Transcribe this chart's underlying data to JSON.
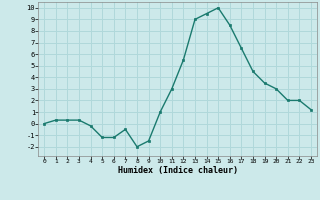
{
  "x": [
    0,
    1,
    2,
    3,
    4,
    5,
    6,
    7,
    8,
    9,
    10,
    11,
    12,
    13,
    14,
    15,
    16,
    17,
    18,
    19,
    20,
    21,
    22,
    23
  ],
  "y": [
    0.0,
    0.3,
    0.3,
    0.3,
    -0.2,
    -1.2,
    -1.2,
    -0.5,
    -2.0,
    -1.5,
    1.0,
    3.0,
    5.5,
    9.0,
    9.5,
    10.0,
    8.5,
    6.5,
    4.5,
    3.5,
    3.0,
    2.0,
    2.0,
    1.2
  ],
  "xlabel": "Humidex (Indice chaleur)",
  "ylim": [
    -2.8,
    10.5
  ],
  "yticks": [
    -2,
    -1,
    0,
    1,
    2,
    3,
    4,
    5,
    6,
    7,
    8,
    9,
    10
  ],
  "xticks": [
    0,
    1,
    2,
    3,
    4,
    5,
    6,
    7,
    8,
    9,
    10,
    11,
    12,
    13,
    14,
    15,
    16,
    17,
    18,
    19,
    20,
    21,
    22,
    23
  ],
  "line_color": "#1a7a6e",
  "marker_color": "#1a7a6e",
  "bg_color": "#cce9ea",
  "grid_color": "#b0d8da",
  "spine_color": "#888888"
}
